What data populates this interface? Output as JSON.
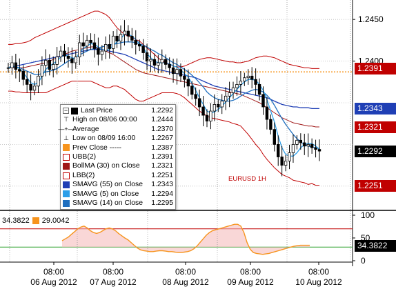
{
  "colors": {
    "price_bars": "#000000",
    "bb_bands": "#c00000",
    "mavg55": "#1f3fb5",
    "mavg5": "#2d9ee8",
    "mavg14": "#1f6fbf",
    "prev_close": "#f7941d",
    "rsi_line": "#f7941d",
    "rsi_fill": "#f4b6b6",
    "osc_line_top": "#c00000",
    "osc_line_mid": "#2ca02c"
  },
  "chart_data": [
    {
      "type": "candlestick",
      "symbol_label": "EURUSD 1H",
      "ylim": [
        1.2225,
        1.247
      ],
      "y_ticks": [
        1.245,
        1.24
      ],
      "y_tick_labels": [
        "1.2450",
        "1.2400"
      ],
      "x_day_labels": [
        "06 Aug 2012",
        "07 Aug 2012",
        "08 Aug 2012",
        "09 Aug 2012",
        "10 Aug 2012"
      ],
      "x_time_labels": [
        "08:00",
        "08:00",
        "08:00",
        "08:00",
        "08:00"
      ],
      "price_tags": [
        {
          "label": "1.2391",
          "value": 1.2391,
          "color": "#c00000"
        },
        {
          "label": "1.2343",
          "value": 1.2343,
          "color": "#1f3fb5"
        },
        {
          "label": "1.2321",
          "value": 1.2321,
          "color": "#c00000"
        },
        {
          "label": "1.2292",
          "value": 1.2292,
          "color": "#000000"
        },
        {
          "label": "1.2251",
          "value": 1.2251,
          "color": "#c00000"
        }
      ],
      "prev_close_level": 1.2387,
      "close": [
        1.2392,
        1.2398,
        1.239,
        1.2388,
        1.2378,
        1.2372,
        1.2365,
        1.237,
        1.2382,
        1.2395,
        1.2401,
        1.239,
        1.2396,
        1.2405,
        1.2412,
        1.2406,
        1.2403,
        1.2398,
        1.2405,
        1.2422,
        1.2418,
        1.2425,
        1.2422,
        1.2415,
        1.2408,
        1.2412,
        1.242,
        1.2415,
        1.243,
        1.2424,
        1.2432,
        1.2436,
        1.243,
        1.2425,
        1.242,
        1.2418,
        1.241,
        1.24,
        1.2402,
        1.2395,
        1.2398,
        1.2402,
        1.2396,
        1.2392,
        1.2385,
        1.239,
        1.2382,
        1.2378,
        1.237,
        1.236,
        1.2355,
        1.2345,
        1.2335,
        1.2328,
        1.234,
        1.2348,
        1.2345,
        1.2352,
        1.2358,
        1.2362,
        1.2368,
        1.2372,
        1.2376,
        1.238,
        1.2382,
        1.2378,
        1.2372,
        1.236,
        1.2345,
        1.233,
        1.2318,
        1.23,
        1.2285,
        1.2275,
        1.228,
        1.229,
        1.23,
        1.2305,
        1.2302,
        1.2298,
        1.23,
        1.2296,
        1.2294,
        1.2292
      ],
      "bb_upper": [
        1.242,
        1.242,
        1.2421,
        1.2421,
        1.2422,
        1.2423,
        1.2425,
        1.2428,
        1.243,
        1.2432,
        1.2434,
        1.2436,
        1.2438,
        1.244,
        1.2442,
        1.2444,
        1.2446,
        1.2448,
        1.245,
        1.2452,
        1.2454,
        1.2456,
        1.2458,
        1.246,
        1.246,
        1.2458,
        1.2456,
        1.2452,
        1.2446,
        1.244,
        1.2436,
        1.2432,
        1.243,
        1.2428,
        1.2426,
        1.2424,
        1.242,
        1.2416,
        1.2412,
        1.2408,
        1.2404,
        1.24,
        1.2398,
        1.2396,
        1.2394,
        1.2393,
        1.2393,
        1.2394,
        1.2396,
        1.2398,
        1.24,
        1.2402,
        1.2403,
        1.2404,
        1.2404,
        1.2403,
        1.2402,
        1.2401,
        1.24,
        1.2399,
        1.2399,
        1.2398,
        1.2398,
        1.2399,
        1.24,
        1.2402,
        1.2404,
        1.2405,
        1.2406,
        1.2406,
        1.2405,
        1.2404,
        1.2402,
        1.24,
        1.2398,
        1.2396,
        1.2395,
        1.2394,
        1.2393,
        1.2392,
        1.2392,
        1.2391,
        1.2391,
        1.2391
      ],
      "bb_mid": [
        1.2392,
        1.2392,
        1.2392,
        1.2392,
        1.2392,
        1.2393,
        1.2394,
        1.2395,
        1.2396,
        1.2397,
        1.2398,
        1.24,
        1.2402,
        1.2404,
        1.2406,
        1.2408,
        1.241,
        1.2412,
        1.2413,
        1.2414,
        1.2415,
        1.2416,
        1.2417,
        1.2417,
        1.2416,
        1.2414,
        1.2412,
        1.241,
        1.2408,
        1.2405,
        1.2402,
        1.2399,
        1.2396,
        1.2393,
        1.239,
        1.2388,
        1.2386,
        1.2385,
        1.2384,
        1.2383,
        1.2382,
        1.2381,
        1.238,
        1.2379,
        1.2378,
        1.2377,
        1.2376,
        1.2375,
        1.2374,
        1.2373,
        1.2372,
        1.2371,
        1.237,
        1.2369,
        1.2368,
        1.2367,
        1.2366,
        1.2365,
        1.2364,
        1.2363,
        1.2362,
        1.2361,
        1.236,
        1.2358,
        1.2356,
        1.2354,
        1.2352,
        1.235,
        1.2347,
        1.2344,
        1.2341,
        1.2338,
        1.2335,
        1.2332,
        1.233,
        1.2328,
        1.2326,
        1.2325,
        1.2324,
        1.2323,
        1.2322,
        1.2322,
        1.2321,
        1.2321
      ],
      "bb_lower": [
        1.2364,
        1.2364,
        1.2363,
        1.2363,
        1.2362,
        1.2362,
        1.2362,
        1.2362,
        1.2362,
        1.2362,
        1.2362,
        1.2364,
        1.2366,
        1.2368,
        1.237,
        1.2372,
        1.2374,
        1.2376,
        1.2376,
        1.2376,
        1.2376,
        1.2376,
        1.2376,
        1.2374,
        1.2372,
        1.237,
        1.2368,
        1.2368,
        1.237,
        1.237,
        1.2368,
        1.2366,
        1.2362,
        1.2358,
        1.2354,
        1.2352,
        1.2352,
        1.2354,
        1.2356,
        1.2358,
        1.236,
        1.2362,
        1.2362,
        1.2362,
        1.2362,
        1.2361,
        1.2359,
        1.2356,
        1.2352,
        1.2348,
        1.2344,
        1.234,
        1.2337,
        1.2334,
        1.2332,
        1.2331,
        1.233,
        1.2329,
        1.2328,
        1.2327,
        1.2325,
        1.2324,
        1.2322,
        1.2317,
        1.2312,
        1.2306,
        1.23,
        1.2295,
        1.2288,
        1.2282,
        1.2277,
        1.2272,
        1.2268,
        1.2264,
        1.2262,
        1.226,
        1.2257,
        1.2256,
        1.2255,
        1.2254,
        1.2252,
        1.2253,
        1.2251,
        1.2251
      ],
      "mavg55": [
        1.2392,
        1.2393,
        1.2394,
        1.2395,
        1.2396,
        1.2397,
        1.2398,
        1.2399,
        1.24,
        1.2401,
        1.2402,
        1.2403,
        1.2404,
        1.2405,
        1.2406,
        1.2407,
        1.2408,
        1.2409,
        1.241,
        1.2411,
        1.2412,
        1.2413,
        1.2414,
        1.2414,
        1.2414,
        1.2414,
        1.2413,
        1.2412,
        1.2411,
        1.241,
        1.2409,
        1.2408,
        1.2406,
        1.2404,
        1.2402,
        1.24,
        1.2398,
        1.2396,
        1.2394,
        1.2392,
        1.239,
        1.2389,
        1.2388,
        1.2387,
        1.2386,
        1.2385,
        1.2384,
        1.2383,
        1.2382,
        1.2381,
        1.238,
        1.2378,
        1.2376,
        1.2374,
        1.2372,
        1.237,
        1.2369,
        1.2368,
        1.2367,
        1.2366,
        1.2365,
        1.2364,
        1.2363,
        1.2362,
        1.2361,
        1.236,
        1.2359,
        1.2358,
        1.2357,
        1.2356,
        1.2354,
        1.2352,
        1.235,
        1.2348,
        1.2347,
        1.2346,
        1.2345,
        1.2345,
        1.2344,
        1.2344,
        1.2344,
        1.2343,
        1.2343,
        1.2343
      ],
      "mavg5": [
        1.2392,
        1.2394,
        1.2393,
        1.2391,
        1.2386,
        1.238,
        1.2374,
        1.2372,
        1.2374,
        1.2382,
        1.239,
        1.2394,
        1.2397,
        1.24,
        1.2405,
        1.2407,
        1.2406,
        1.2404,
        1.2403,
        1.241,
        1.2415,
        1.2418,
        1.2421,
        1.242,
        1.2417,
        1.2414,
        1.2413,
        1.2414,
        1.2419,
        1.2423,
        1.2427,
        1.2432,
        1.2432,
        1.243,
        1.2426,
        1.2421,
        1.2416,
        1.2409,
        1.2404,
        1.24,
        1.2398,
        1.2398,
        1.2398,
        1.2397,
        1.2394,
        1.2393,
        1.2389,
        1.2385,
        1.2381,
        1.2373,
        1.2365,
        1.2356,
        1.2348,
        1.234,
        1.2338,
        1.2339,
        1.2342,
        1.2346,
        1.2351,
        1.2356,
        1.2361,
        1.2366,
        1.2371,
        1.2375,
        1.2378,
        1.2378,
        1.2377,
        1.2372,
        1.2365,
        1.2354,
        1.234,
        1.2327,
        1.231,
        1.2296,
        1.2288,
        1.2286,
        1.2286,
        1.229,
        1.2296,
        1.23,
        1.2301,
        1.2301,
        1.2298,
        1.2294
      ],
      "mavg14": [
        1.2392,
        1.2393,
        1.2393,
        1.2392,
        1.239,
        1.2388,
        1.2386,
        1.2384,
        1.2384,
        1.2385,
        1.2387,
        1.2388,
        1.2389,
        1.2391,
        1.2394,
        1.2397,
        1.24,
        1.2402,
        1.2404,
        1.2407,
        1.241,
        1.2412,
        1.2414,
        1.2415,
        1.2416,
        1.2417,
        1.2418,
        1.2419,
        1.242,
        1.2421,
        1.2422,
        1.2423,
        1.2423,
        1.2423,
        1.2422,
        1.2421,
        1.2419,
        1.2417,
        1.2414,
        1.2412,
        1.2409,
        1.2407,
        1.2404,
        1.2401,
        1.2398,
        1.2396,
        1.2393,
        1.239,
        1.2387,
        1.2383,
        1.2379,
        1.2374,
        1.2369,
        1.2363,
        1.2359,
        1.2356,
        1.2354,
        1.2353,
        1.2352,
        1.2352,
        1.2353,
        1.2355,
        1.2358,
        1.2361,
        1.2363,
        1.2365,
        1.2366,
        1.2365,
        1.2363,
        1.2359,
        1.2354,
        1.2347,
        1.2339,
        1.2331,
        1.2324,
        1.2318,
        1.2312,
        1.2307,
        1.2303,
        1.23,
        1.2298,
        1.2297,
        1.2296,
        1.2295
      ]
    },
    {
      "type": "line",
      "name": "oscillator",
      "ylim": [
        0,
        100
      ],
      "y_ticks": [
        100,
        50,
        0
      ],
      "y_tick_labels": [
        "100",
        "50",
        "0"
      ],
      "levels": [
        {
          "value": 70,
          "color": "#c00000"
        },
        {
          "value": 30,
          "color": "#2ca02c"
        }
      ],
      "value_tag": "34.3822",
      "values": [
        44,
        48,
        52,
        58,
        64,
        70,
        74,
        76,
        72,
        66,
        62,
        60,
        62,
        66,
        70,
        72,
        70,
        66,
        60,
        55,
        50,
        46,
        40,
        34,
        28,
        24,
        22,
        21,
        20,
        20,
        21,
        22,
        22,
        21,
        20,
        20,
        19,
        18,
        18,
        19,
        20,
        22,
        26,
        32,
        40,
        48,
        56,
        62,
        66,
        68,
        70,
        72,
        74,
        76,
        78,
        80,
        80,
        76,
        62,
        40,
        25,
        18,
        16,
        15,
        14,
        15,
        16,
        18,
        20,
        22,
        24,
        26,
        28,
        30,
        32,
        33,
        34,
        34,
        34,
        34
      ]
    }
  ],
  "legend": {
    "rows": [
      {
        "marker": "collapse",
        "marker_glyph": "−",
        "swatch": "#000000",
        "label": "Last Price",
        "value": "1.2292"
      },
      {
        "marker": "high",
        "marker_glyph": "⊤",
        "label": "High on 08/06 00:00",
        "value": "1.2444"
      },
      {
        "marker": "avg",
        "marker_glyph": "—+—",
        "label": "Average",
        "value": "1.2370"
      },
      {
        "marker": "low",
        "marker_glyph": "⊥",
        "label": "Low on 08/09 16:00",
        "value": "1.2267"
      },
      {
        "marker": "box",
        "swatch": "#f7941d",
        "label": "Prev Close -----",
        "value": "1.2387"
      },
      {
        "marker": "outline",
        "swatch": "#c00000",
        "label": "UBB(2)",
        "value": "1.2391"
      },
      {
        "marker": "box",
        "swatch": "#a01818",
        "label": "BollMA (30) on Close",
        "value": "1.2321"
      },
      {
        "marker": "outline",
        "swatch": "#c00000",
        "label": "LBB(2)",
        "value": "1.2251"
      },
      {
        "marker": "box",
        "swatch": "#1f3fb5",
        "label": "SMAVG (55) on Close",
        "value": "1.2343"
      },
      {
        "marker": "box",
        "swatch": "#2d9ee8",
        "label": "SMAVG (5) on Close",
        "value": "1.2294"
      },
      {
        "marker": "box",
        "swatch": "#1f6fbf",
        "label": "SMAVG (14) on Close",
        "value": "1.2295"
      }
    ]
  },
  "oscillator_legend": {
    "value_a": "34.3822",
    "value_b": "29.0042",
    "swatch_b": "#f7941d"
  }
}
